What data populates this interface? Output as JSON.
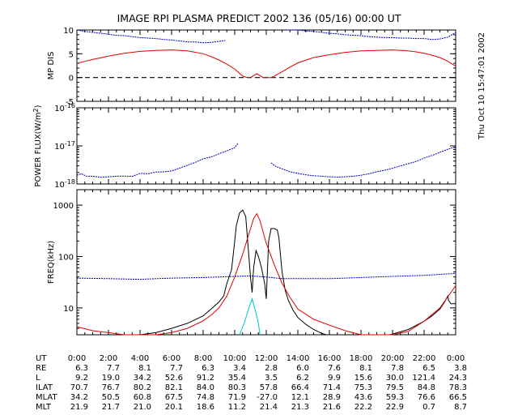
{
  "title": "IMAGE  RPI PLASMA PREDICT 2002 136 (05/16) 00:00 UT",
  "timestamp": "Thu Oct 10 15:47:01 2002",
  "colors": {
    "black": "#000000",
    "red": "#e00000",
    "blue": "#0000cc",
    "cyan": "#00c8c8"
  },
  "chart_data": [
    {
      "type": "line",
      "panel": "mp_dis",
      "ylabel": "MP DIS",
      "ylim": [
        -5,
        10
      ],
      "yticks": [
        "10",
        "5",
        "0",
        "-5"
      ],
      "reference_line": {
        "y": 0,
        "style": "dashed"
      },
      "series": [
        {
          "color": "blue",
          "x": [
            0,
            0.5,
            1,
            1.5,
            2,
            2.5,
            3,
            3.5,
            4,
            4.5,
            5,
            5.5,
            6,
            6.5,
            7,
            7.5,
            8,
            8.5,
            9,
            9.4
          ],
          "y": [
            10.0,
            9.7,
            9.5,
            9.3,
            9.1,
            8.9,
            8.8,
            8.6,
            8.4,
            8.3,
            8.2,
            8.0,
            7.9,
            7.7,
            7.5,
            7.5,
            7.3,
            7.4,
            7.6,
            7.8
          ]
        },
        {
          "color": "blue",
          "x": [
            13.3,
            14,
            14.5,
            15,
            15.5,
            16,
            16.5,
            17,
            17.5,
            18,
            18.5,
            19,
            19.5,
            20,
            20.5,
            21,
            21.5,
            22,
            22.5,
            23,
            23.5,
            24
          ],
          "y": [
            10.2,
            10.0,
            9.8,
            9.7,
            9.5,
            9.3,
            9.2,
            9.0,
            8.9,
            8.8,
            8.6,
            8.5,
            8.4,
            8.4,
            8.3,
            8.3,
            8.2,
            8.2,
            8.0,
            8.1,
            8.5,
            9.5
          ]
        },
        {
          "color": "red",
          "x": [
            0,
            0.5,
            1,
            2,
            3,
            4,
            5,
            6,
            7,
            8,
            8.5,
            9,
            9.5,
            10,
            10.3,
            10.5,
            10.8,
            11,
            11.2,
            11.4,
            11.6,
            11.8,
            12,
            12.3,
            12.5,
            13,
            13.5,
            14,
            15,
            16,
            17,
            18,
            19,
            20,
            21,
            21.5,
            22,
            22.5,
            23,
            23.5,
            24
          ],
          "y": [
            3.0,
            3.4,
            3.8,
            4.5,
            5.1,
            5.5,
            5.7,
            5.8,
            5.6,
            5.0,
            4.4,
            3.7,
            2.8,
            1.8,
            0.9,
            0.3,
            0.0,
            0.0,
            0.4,
            0.8,
            0.4,
            0.0,
            0.0,
            0.0,
            0.3,
            1.2,
            2.2,
            3.1,
            4.2,
            4.8,
            5.3,
            5.6,
            5.7,
            5.8,
            5.6,
            5.4,
            5.1,
            4.7,
            4.2,
            3.4,
            2.4
          ]
        }
      ]
    },
    {
      "type": "line",
      "panel": "power_flux",
      "ylabel": "POWER FLUX(W/m^2)",
      "yscale": "log",
      "ylim": [
        1e-18,
        1e-16
      ],
      "yticks": [
        "10^-16",
        "10^-17",
        "10^-18"
      ],
      "series": [
        {
          "color": "blue",
          "x": [
            0,
            0.3,
            0.6,
            1,
            1.5,
            2,
            2.5,
            3,
            3.5,
            4,
            4.5,
            5,
            5.5,
            6,
            6.5,
            7,
            7.5,
            8,
            8.5,
            9,
            9.5,
            10,
            10.2
          ],
          "y": [
            1.7e-18,
            1.85e-18,
            1.6e-18,
            1.6e-18,
            1.5e-18,
            1.55e-18,
            1.6e-18,
            1.62e-18,
            1.58e-18,
            1.9e-18,
            1.85e-18,
            2.05e-18,
            2.1e-18,
            2.2e-18,
            2.6e-18,
            3.1e-18,
            3.7e-18,
            4.6e-18,
            5.1e-18,
            6.2e-18,
            7.4e-18,
            9e-18,
            1.15e-17
          ]
        },
        {
          "color": "blue",
          "x": [
            12.3,
            12.6,
            13,
            13.5,
            14,
            14.5,
            15,
            15.5,
            16,
            16.5,
            17,
            17.5,
            18,
            18.5,
            19,
            19.5,
            20,
            20.5,
            21,
            21.5,
            22,
            22.5,
            23,
            23.5,
            24
          ],
          "y": [
            3.6e-18,
            2.9e-18,
            2.5e-18,
            2.1e-18,
            1.9e-18,
            1.75e-18,
            1.65e-18,
            1.6e-18,
            1.55e-18,
            1.52e-18,
            1.55e-18,
            1.6e-18,
            1.7e-18,
            1.85e-18,
            2.1e-18,
            2.3e-18,
            2.6e-18,
            3e-18,
            3.4e-18,
            3.9e-18,
            4.8e-18,
            5.6e-18,
            6.8e-18,
            8.2e-18,
            9.5e-18
          ]
        }
      ]
    },
    {
      "type": "line",
      "panel": "freq",
      "ylabel": "FREQ(kHz)",
      "yscale": "log",
      "ylim": [
        3,
        2000
      ],
      "yticks": [
        "1000",
        "100",
        "10"
      ],
      "series": [
        {
          "color": "black",
          "x": [
            0,
            1,
            2,
            3,
            4,
            5,
            6,
            7,
            8,
            8.5,
            9,
            9.3,
            9.5,
            9.8,
            10,
            10.1,
            10.3,
            10.5,
            10.7,
            10.85,
            11,
            11.1,
            11.2,
            11.35,
            11.5,
            11.7,
            11.9,
            12.0,
            12.15,
            12.3,
            12.5,
            12.7,
            12.8,
            13.0,
            13.2,
            13.4,
            13.7,
            14,
            14.5,
            15,
            15.5,
            15.8
          ],
          "y": [
            3,
            3,
            3,
            3,
            3,
            3.3,
            4,
            5,
            7,
            9.5,
            13,
            17,
            30,
            55,
            200,
            400,
            700,
            800,
            600,
            150,
            40,
            20,
            60,
            130,
            100,
            60,
            30,
            15,
            200,
            350,
            350,
            330,
            230,
            50,
            22,
            14,
            9,
            6.5,
            4.8,
            3.8,
            3.2,
            3
          ]
        },
        {
          "color": "black",
          "x": [
            19.8,
            20,
            21,
            22,
            22.5,
            23,
            23.3,
            23.5,
            23.55,
            23.7,
            24
          ],
          "y": [
            3,
            3.1,
            3.8,
            5.5,
            7,
            9.5,
            13,
            17,
            14,
            12,
            12
          ]
        },
        {
          "color": "red",
          "x": [
            0,
            1,
            2,
            3,
            4,
            5,
            6,
            7,
            8,
            8.5,
            9,
            9.5,
            10,
            10.5,
            11,
            11.2,
            11.4,
            11.6,
            12,
            12.5,
            13,
            13.5,
            14,
            15,
            16,
            17,
            18,
            19,
            20,
            21,
            22,
            23,
            24
          ],
          "y": [
            4.3,
            3.6,
            3.3,
            3.0,
            3.0,
            3.0,
            3.3,
            4.0,
            5.6,
            7.2,
            10,
            17,
            40,
            110,
            350,
            550,
            680,
            500,
            180,
            70,
            30,
            16,
            9.5,
            6.0,
            4.6,
            3.6,
            3.0,
            3.0,
            3.0,
            3.5,
            5.5,
            10,
            27
          ]
        },
        {
          "color": "blue",
          "x": [
            0,
            2,
            4,
            6,
            8,
            9,
            10,
            11,
            12,
            13,
            14,
            15,
            16,
            17,
            18,
            19,
            20,
            21,
            22,
            23,
            24
          ],
          "y": [
            38,
            37,
            36,
            38,
            39,
            40,
            41,
            42,
            40,
            37,
            37,
            37,
            37,
            38,
            39,
            40,
            41,
            42,
            43,
            45,
            47
          ]
        },
        {
          "color": "cyan",
          "x": [
            10.3,
            10.6,
            10.9,
            11.1,
            11.3,
            11.5,
            11.6
          ],
          "y": [
            3,
            5,
            10,
            15,
            9,
            5,
            3
          ]
        }
      ]
    }
  ],
  "x_axis": {
    "ticks": [
      "0:00",
      "2:00",
      "4:00",
      "6:00",
      "8:00",
      "10:00",
      "12:00",
      "14:00",
      "16:00",
      "18:00",
      "20:00",
      "22:00",
      "0:00"
    ]
  },
  "ephemeris": {
    "labels": [
      "UT",
      "RE",
      "L",
      "ILAT",
      "MLAT",
      "MLT"
    ],
    "rows": [
      [
        "6.3",
        "7.7",
        "8.1",
        "7.7",
        "6.3",
        "3.4",
        "2.8",
        "6.0",
        "7.6",
        "8.1",
        "7.8",
        "6.5",
        "3.8"
      ],
      [
        "9.2",
        "19.0",
        "34.2",
        "52.6",
        "91.2",
        "35.4",
        "3.5",
        "6.2",
        "9.9",
        "15.6",
        "30.0",
        "121.4",
        "24.3"
      ],
      [
        "70.7",
        "76.7",
        "80.2",
        "82.1",
        "84.0",
        "80.3",
        "57.8",
        "66.4",
        "71.4",
        "75.3",
        "79.5",
        "84.8",
        "78.3"
      ],
      [
        "34.2",
        "50.5",
        "60.8",
        "67.5",
        "74.8",
        "71.9",
        "-27.0",
        "12.1",
        "28.9",
        "43.6",
        "59.3",
        "76.6",
        "66.5"
      ],
      [
        "21.9",
        "21.7",
        "21.0",
        "20.1",
        "18.6",
        "11.2",
        "21.4",
        "21.3",
        "21.6",
        "22.2",
        "22.9",
        "0.7",
        "8.7"
      ]
    ]
  }
}
